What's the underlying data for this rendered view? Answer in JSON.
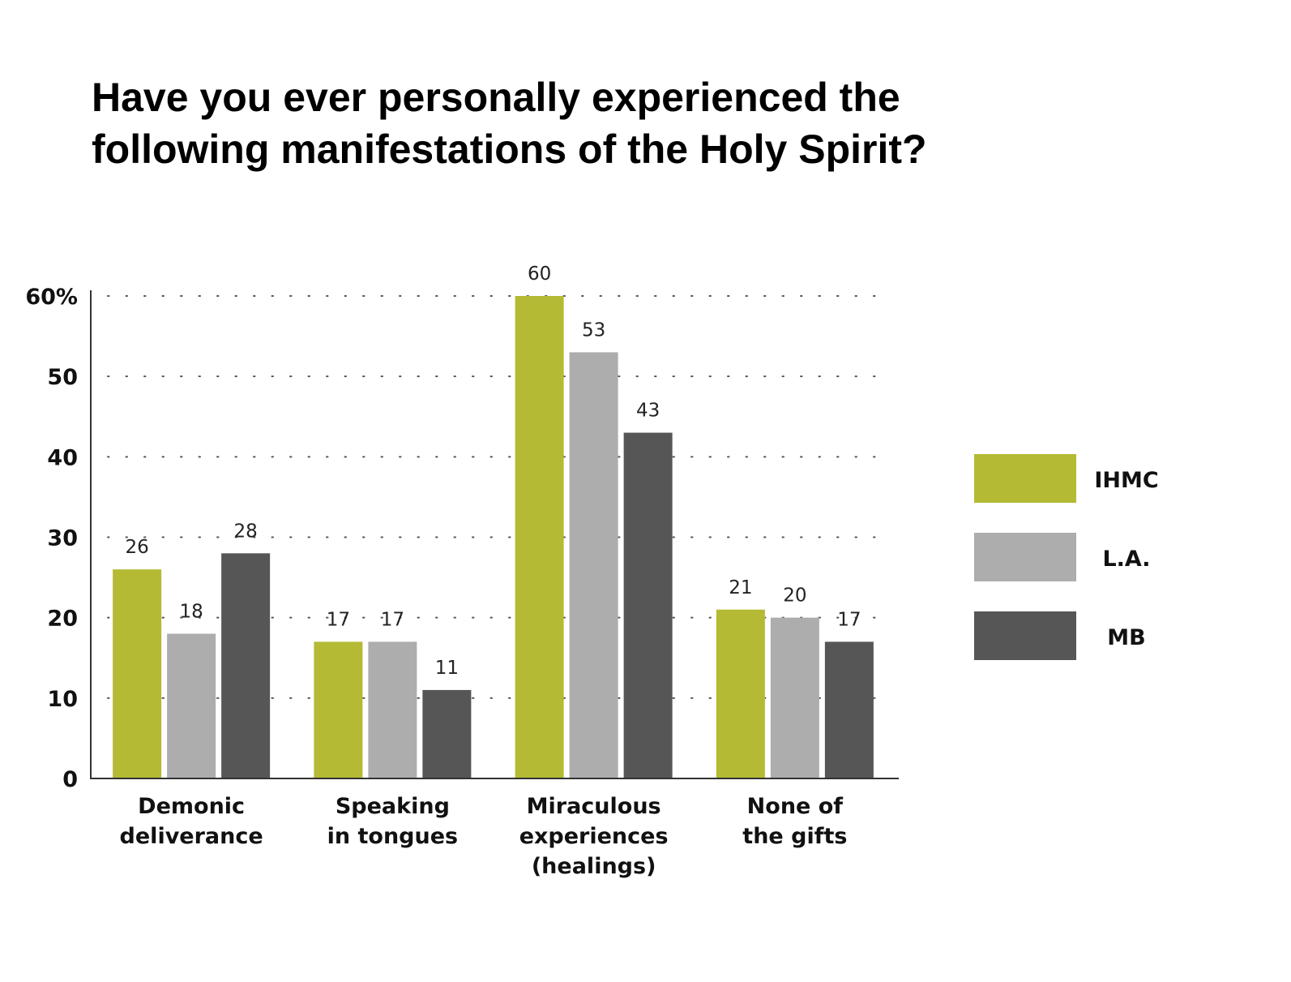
{
  "chart_data": {
    "type": "bar",
    "title": "Have you ever personally experienced the following manifestations of the Holy Spirit?",
    "title_lines": [
      "Have you ever personally experienced the",
      "following manifestations of the Holy Spirit?"
    ],
    "categories": [
      [
        "Demonic",
        "deliverance"
      ],
      [
        "Speaking",
        "in tongues"
      ],
      [
        "Miraculous",
        "experiences",
        "(healings)"
      ],
      [
        "None of",
        "the gifts"
      ]
    ],
    "series": [
      {
        "name": "IHMC",
        "color": "#b4ba34",
        "values": [
          26,
          17,
          60,
          21
        ]
      },
      {
        "name": "L.A.",
        "color": "#adadad",
        "values": [
          18,
          17,
          53,
          20
        ]
      },
      {
        "name": "MB",
        "color": "#565656",
        "values": [
          28,
          11,
          43,
          17
        ]
      }
    ],
    "y_ticks": [
      "0",
      "10",
      "20",
      "30",
      "40",
      "50",
      "60%"
    ],
    "ylim": [
      0,
      60
    ],
    "grid": true,
    "legend_position": "right"
  }
}
